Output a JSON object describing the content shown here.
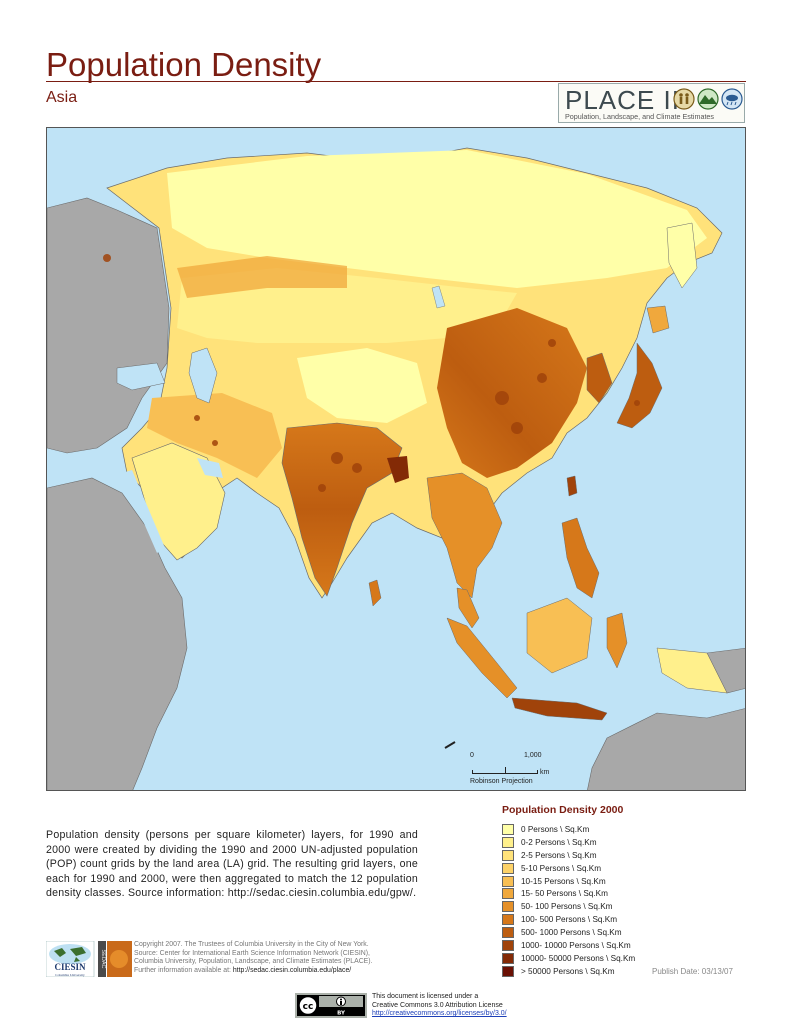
{
  "header": {
    "title": "Population Density",
    "subtitle": "Asia"
  },
  "place_logo": {
    "name": "PLACE II",
    "tagline": "Population, Landscape, and Climate Estimates",
    "icons": [
      "people-icon",
      "landscape-icon",
      "climate-icon"
    ]
  },
  "map": {
    "region": "Asia",
    "colors": {
      "ocean": "#bfe3f6",
      "outside_region": "#a8a8a8",
      "border": "#6b6b6b"
    }
  },
  "scale": {
    "zero": "0",
    "max": "1,000",
    "unit": "km",
    "projection": "Robinson Projection"
  },
  "description": "Population density (persons per square kilometer) layers, for 1990 and 2000 were created by dividing the 1990 and 2000 UN-adjusted population (POP) count grids by the land area (LA) grid. The resulting grid layers, one each for 1990 and 2000, were then aggregated to match the 12 population density classes. Source information: http://sedac.ciesin.columbia.edu/gpw/.",
  "legend": {
    "title": "Population Density  2000",
    "items": [
      {
        "label": "0 Persons \\ Sq.Km",
        "color": "#ffffa8"
      },
      {
        "label": "0-2 Persons \\ Sq.Km",
        "color": "#fff08c"
      },
      {
        "label": "2-5 Persons \\ Sq.Km",
        "color": "#ffe27a"
      },
      {
        "label": "5-10 Persons \\ Sq.Km",
        "color": "#fdd268"
      },
      {
        "label": "10-15 Persons \\ Sq.Km",
        "color": "#f8bf54"
      },
      {
        "label": "15- 50 Persons \\ Sq.Km",
        "color": "#f0a83c"
      },
      {
        "label": "50- 100 Persons \\ Sq.Km",
        "color": "#e59028"
      },
      {
        "label": "100- 500 Persons \\ Sq.Km",
        "color": "#d6781a"
      },
      {
        "label": "500- 1000 Persons \\ Sq.Km",
        "color": "#bd5d10"
      },
      {
        "label": "1000- 10000 Persons \\ Sq.Km",
        "color": "#a0430a"
      },
      {
        "label": "10000- 50000 Persons \\ Sq.Km",
        "color": "#832a06"
      },
      {
        "label": "> 50000 Persons \\ Sq.Km",
        "color": "#6a1004"
      }
    ]
  },
  "publish_date": "Publish Date: 03/13/07",
  "footer": {
    "logo_name": "CIESIN",
    "logo_subtext": "Columbia University",
    "sedac_text": "SEDAC",
    "copyright_lines": [
      "Copyright 2007. The Trustees of Columbia University in the City of New York.",
      "Source: Center for International Earth Science Information Network (CIESIN),",
      "Columbia University, Population, Landscape, and Climate Estimates (PLACE)."
    ],
    "further_info_label": "Further information available at:",
    "further_info_url": "http://sedac.ciesin.columbia.edu/place/",
    "license_line1": "This document is licensed under a",
    "license_line2": "Creative Commons 3.0 Attribution License",
    "license_url": "http://creativecommons.org/licenses/by/3.0/",
    "cc_text": "cc",
    "by_text": "BY"
  }
}
